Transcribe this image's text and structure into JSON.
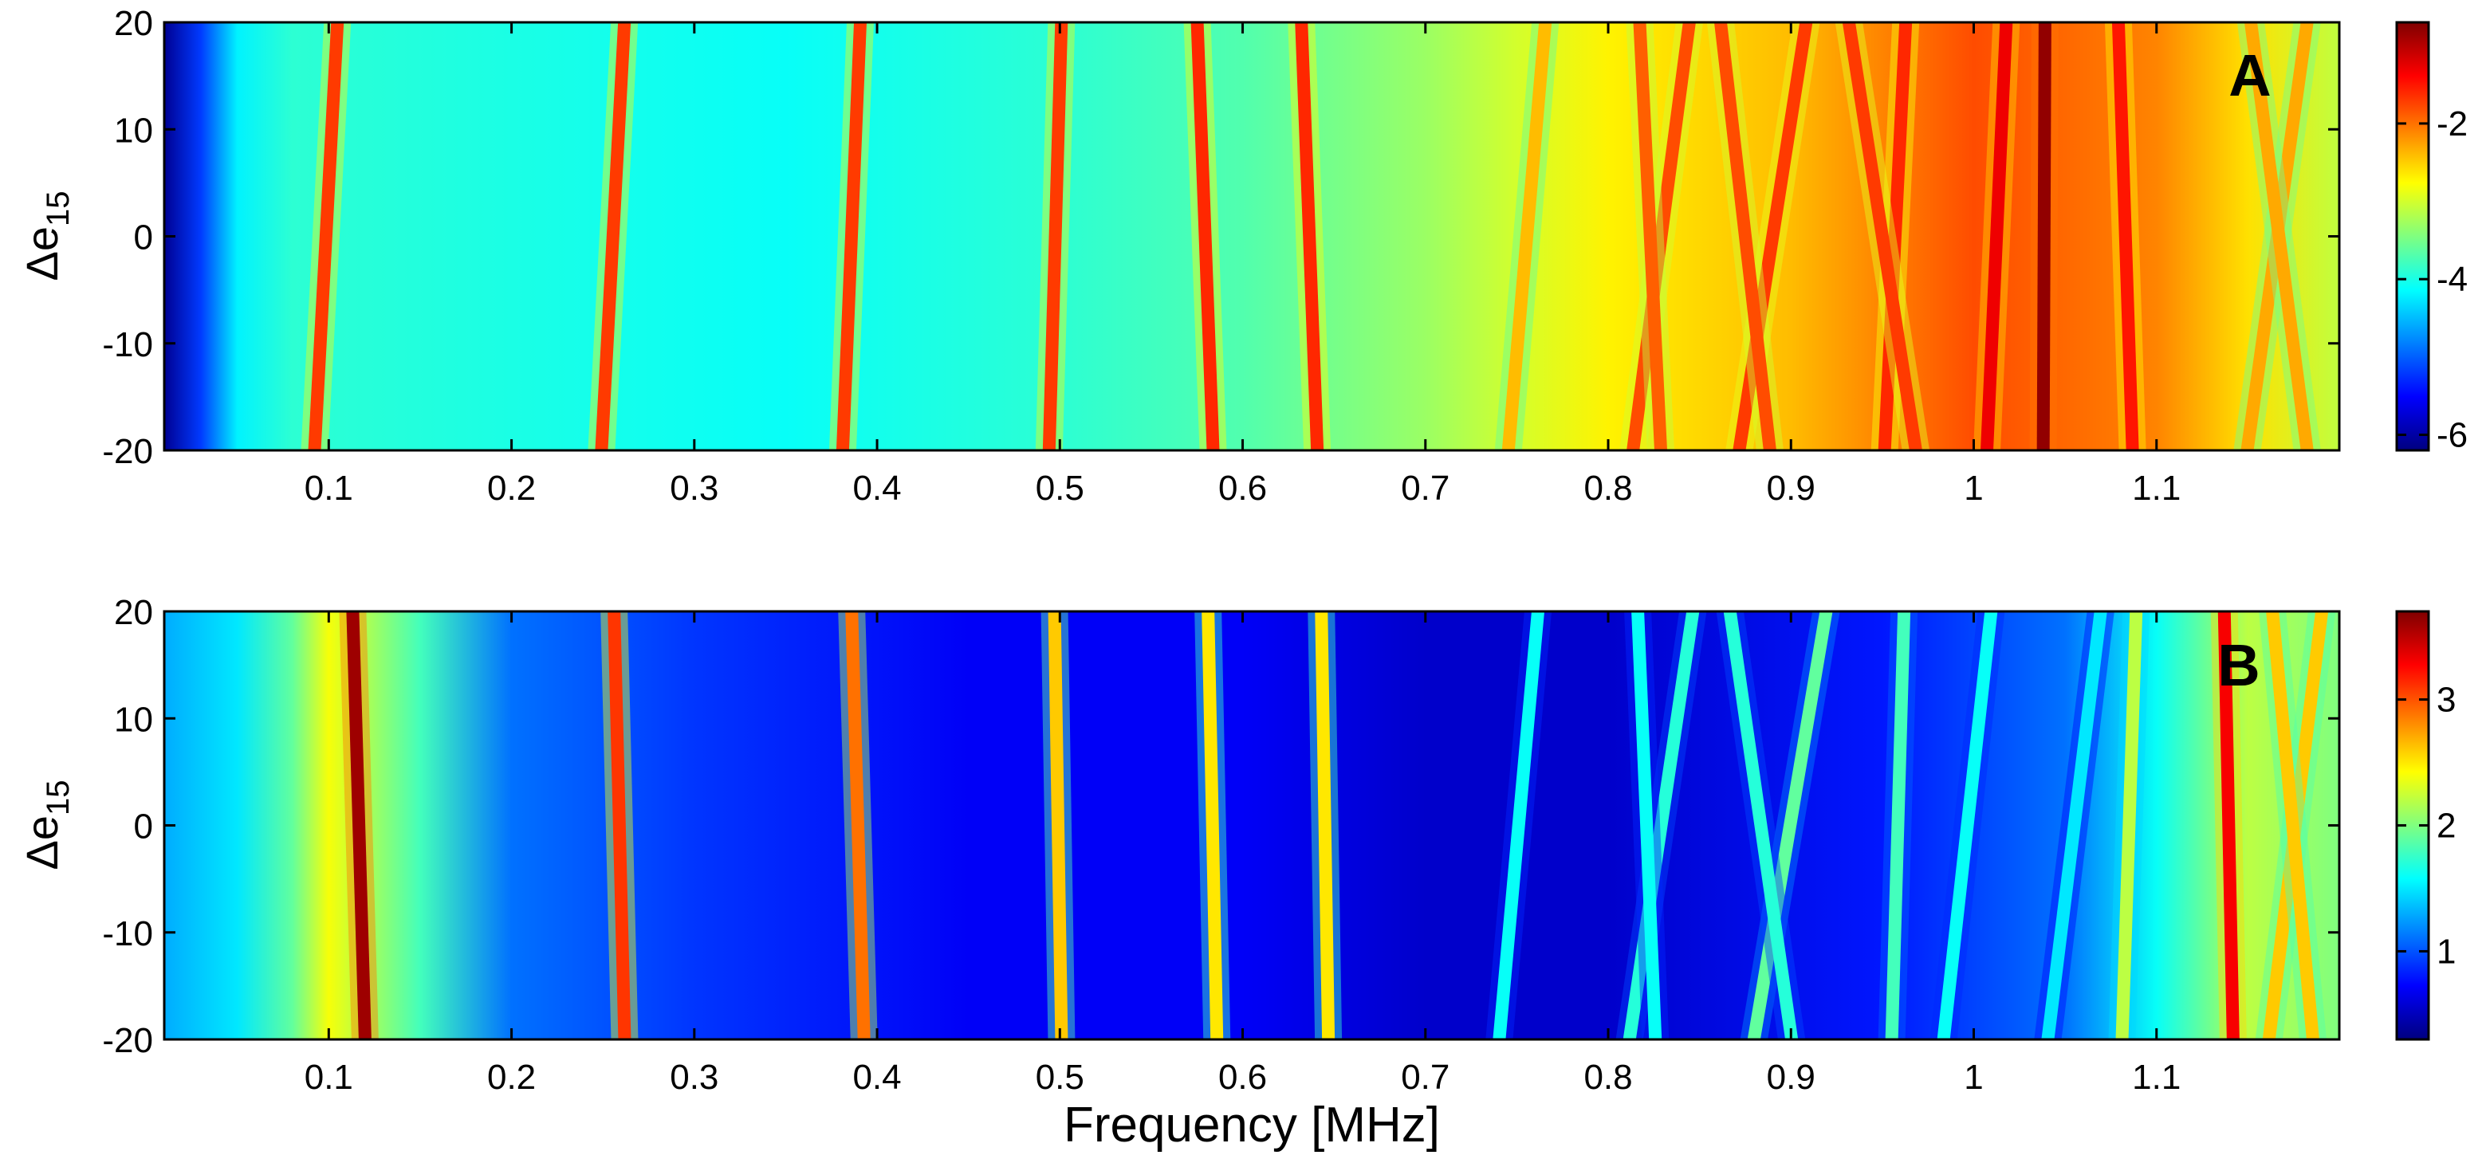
{
  "chart_data": [
    {
      "type": "heatmap",
      "panel_label": "A",
      "xlabel": "",
      "ylabel_base": "Δe",
      "ylabel_sub": "15",
      "xlim": [
        0.01,
        1.2
      ],
      "ylim": [
        -20,
        20
      ],
      "xticks": [
        0.1,
        0.2,
        0.3,
        0.4,
        0.5,
        0.6,
        0.7,
        0.8,
        0.9,
        1,
        1.1
      ],
      "xtick_labels": [
        "0.1",
        "0.2",
        "0.3",
        "0.4",
        "0.5",
        "0.6",
        "0.7",
        "0.8",
        "0.9",
        "1",
        "1.1"
      ],
      "yticks": [
        20,
        10,
        0,
        -10,
        -20
      ],
      "ytick_labels": [
        "20",
        "10",
        "0",
        "-10",
        "-20"
      ],
      "colorbar": {
        "range": [
          -6.2,
          -0.7
        ],
        "ticks": [
          -2,
          -4,
          -6
        ],
        "tick_labels": [
          "-2",
          "-4",
          "-6"
        ],
        "colormap": "jet"
      },
      "background_profile": [
        [
          0.01,
          -6.1
        ],
        [
          0.03,
          -5.2
        ],
        [
          0.05,
          -4.2
        ],
        [
          0.08,
          -3.9
        ],
        [
          0.2,
          -4.0
        ],
        [
          0.35,
          -4.1
        ],
        [
          0.5,
          -3.9
        ],
        [
          0.6,
          -3.7
        ],
        [
          0.7,
          -3.3
        ],
        [
          0.75,
          -3.0
        ],
        [
          0.8,
          -2.7
        ],
        [
          0.9,
          -2.4
        ],
        [
          0.95,
          -2.1
        ],
        [
          1.0,
          -1.8
        ],
        [
          1.1,
          -2.1
        ],
        [
          1.15,
          -2.6
        ],
        [
          1.2,
          -3.1
        ]
      ],
      "bands": [
        {
          "f_bottom": 0.092,
          "f_top": 0.105,
          "value": -1.7
        },
        {
          "f_bottom": 0.249,
          "f_top": 0.262,
          "value": -1.7
        },
        {
          "f_bottom": 0.381,
          "f_top": 0.391,
          "value": -1.7
        },
        {
          "f_bottom": 0.494,
          "f_top": 0.501,
          "value": -1.7
        },
        {
          "f_bottom": 0.584,
          "f_top": 0.575,
          "value": -1.6
        },
        {
          "f_bottom": 0.641,
          "f_top": 0.632,
          "value": -1.6
        },
        {
          "f_bottom": 0.745,
          "f_top": 0.766,
          "value": -2.4
        },
        {
          "f_bottom": 0.813,
          "f_top": 0.845,
          "value": -1.8
        },
        {
          "f_bottom": 0.829,
          "f_top": 0.817,
          "value": -1.9
        },
        {
          "f_bottom": 0.871,
          "f_top": 0.909,
          "value": -1.7
        },
        {
          "f_bottom": 0.889,
          "f_top": 0.861,
          "value": -1.8
        },
        {
          "f_bottom": 0.951,
          "f_top": 0.963,
          "value": -1.6
        },
        {
          "f_bottom": 0.969,
          "f_top": 0.931,
          "value": -1.7
        },
        {
          "f_bottom": 1.007,
          "f_top": 1.018,
          "value": -1.3
        },
        {
          "f_bottom": 1.038,
          "f_top": 1.039,
          "value": -0.8
        },
        {
          "f_bottom": 1.087,
          "f_top": 1.079,
          "value": -1.5
        },
        {
          "f_bottom": 1.149,
          "f_top": 1.183,
          "value": -2.3
        },
        {
          "f_bottom": 1.183,
          "f_top": 1.151,
          "value": -2.3
        }
      ]
    },
    {
      "type": "heatmap",
      "panel_label": "B",
      "xlabel": "Frequency [MHz]",
      "ylabel_base": "Δe",
      "ylabel_sub": "15",
      "xlim": [
        0.01,
        1.2
      ],
      "ylim": [
        -20,
        20
      ],
      "xticks": [
        0.1,
        0.2,
        0.3,
        0.4,
        0.5,
        0.6,
        0.7,
        0.8,
        0.9,
        1,
        1.1
      ],
      "xtick_labels": [
        "0.1",
        "0.2",
        "0.3",
        "0.4",
        "0.5",
        "0.6",
        "0.7",
        "0.8",
        "0.9",
        "1",
        "1.1"
      ],
      "yticks": [
        20,
        10,
        0,
        -10,
        -20
      ],
      "ytick_labels": [
        "20",
        "10",
        "0",
        "-10",
        "-20"
      ],
      "colorbar": {
        "range": [
          0.3,
          3.7
        ],
        "ticks": [
          3,
          2,
          1
        ],
        "tick_labels": [
          "3",
          "2",
          "1"
        ],
        "colormap": "jet"
      },
      "background_profile": [
        [
          0.01,
          1.3
        ],
        [
          0.05,
          1.5
        ],
        [
          0.08,
          1.9
        ],
        [
          0.1,
          2.4
        ],
        [
          0.15,
          1.8
        ],
        [
          0.2,
          1.1
        ],
        [
          0.3,
          0.9
        ],
        [
          0.45,
          0.7
        ],
        [
          0.6,
          0.7
        ],
        [
          0.7,
          0.55
        ],
        [
          0.8,
          0.55
        ],
        [
          0.95,
          0.8
        ],
        [
          1.05,
          1.1
        ],
        [
          1.1,
          1.6
        ],
        [
          1.15,
          2.2
        ],
        [
          1.2,
          2.0
        ]
      ],
      "bands": [
        {
          "f_bottom": 0.12,
          "f_top": 0.113,
          "value": 3.6
        },
        {
          "f_bottom": 0.262,
          "f_top": 0.256,
          "value": 3.1
        },
        {
          "f_bottom": 0.393,
          "f_top": 0.386,
          "value": 2.9
        },
        {
          "f_bottom": 0.501,
          "f_top": 0.497,
          "value": 2.6
        },
        {
          "f_bottom": 0.586,
          "f_top": 0.581,
          "value": 2.5
        },
        {
          "f_bottom": 0.647,
          "f_top": 0.643,
          "value": 2.5
        },
        {
          "f_bottom": 0.74,
          "f_top": 0.762,
          "value": 1.6
        },
        {
          "f_bottom": 0.811,
          "f_top": 0.847,
          "value": 1.7
        },
        {
          "f_bottom": 0.826,
          "f_top": 0.816,
          "value": 1.6
        },
        {
          "f_bottom": 0.879,
          "f_top": 0.92,
          "value": 1.9
        },
        {
          "f_bottom": 0.901,
          "f_top": 0.866,
          "value": 1.7
        },
        {
          "f_bottom": 0.955,
          "f_top": 0.962,
          "value": 1.8
        },
        {
          "f_bottom": 0.983,
          "f_top": 1.01,
          "value": 1.6
        },
        {
          "f_bottom": 1.04,
          "f_top": 1.07,
          "value": 1.5
        },
        {
          "f_bottom": 1.081,
          "f_top": 1.089,
          "value": 2.2
        },
        {
          "f_bottom": 1.142,
          "f_top": 1.137,
          "value": 3.3
        },
        {
          "f_bottom": 1.161,
          "f_top": 1.191,
          "value": 2.6
        },
        {
          "f_bottom": 1.186,
          "f_top": 1.163,
          "value": 2.6
        }
      ]
    }
  ]
}
